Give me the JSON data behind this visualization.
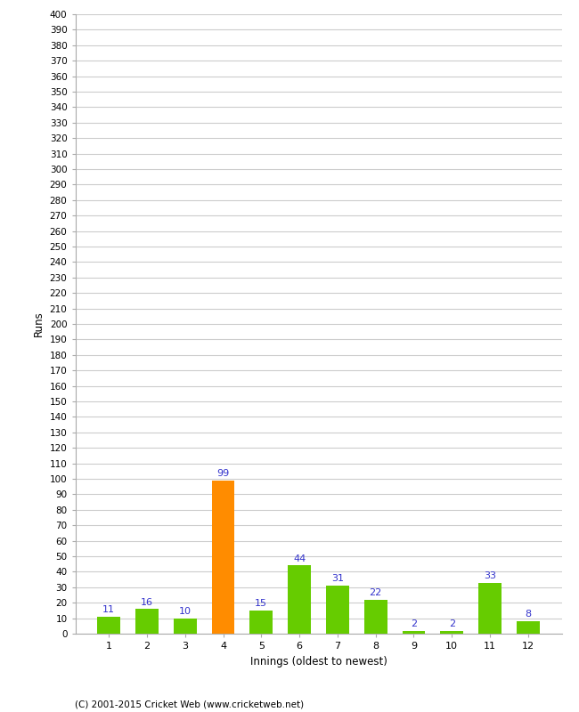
{
  "categories": [
    1,
    2,
    3,
    4,
    5,
    6,
    7,
    8,
    9,
    10,
    11,
    12
  ],
  "values": [
    11,
    16,
    10,
    99,
    15,
    44,
    31,
    22,
    2,
    2,
    33,
    8
  ],
  "bar_colors": [
    "#66cc00",
    "#66cc00",
    "#66cc00",
    "#ff8c00",
    "#66cc00",
    "#66cc00",
    "#66cc00",
    "#66cc00",
    "#66cc00",
    "#66cc00",
    "#66cc00",
    "#66cc00"
  ],
  "xlabel": "Innings (oldest to newest)",
  "ylabel": "Runs",
  "ylim": [
    0,
    400
  ],
  "ytick_step": 10,
  "label_color": "#3333cc",
  "footer": "(C) 2001-2015 Cricket Web (www.cricketweb.net)",
  "background_color": "#ffffff",
  "grid_color": "#cccccc"
}
